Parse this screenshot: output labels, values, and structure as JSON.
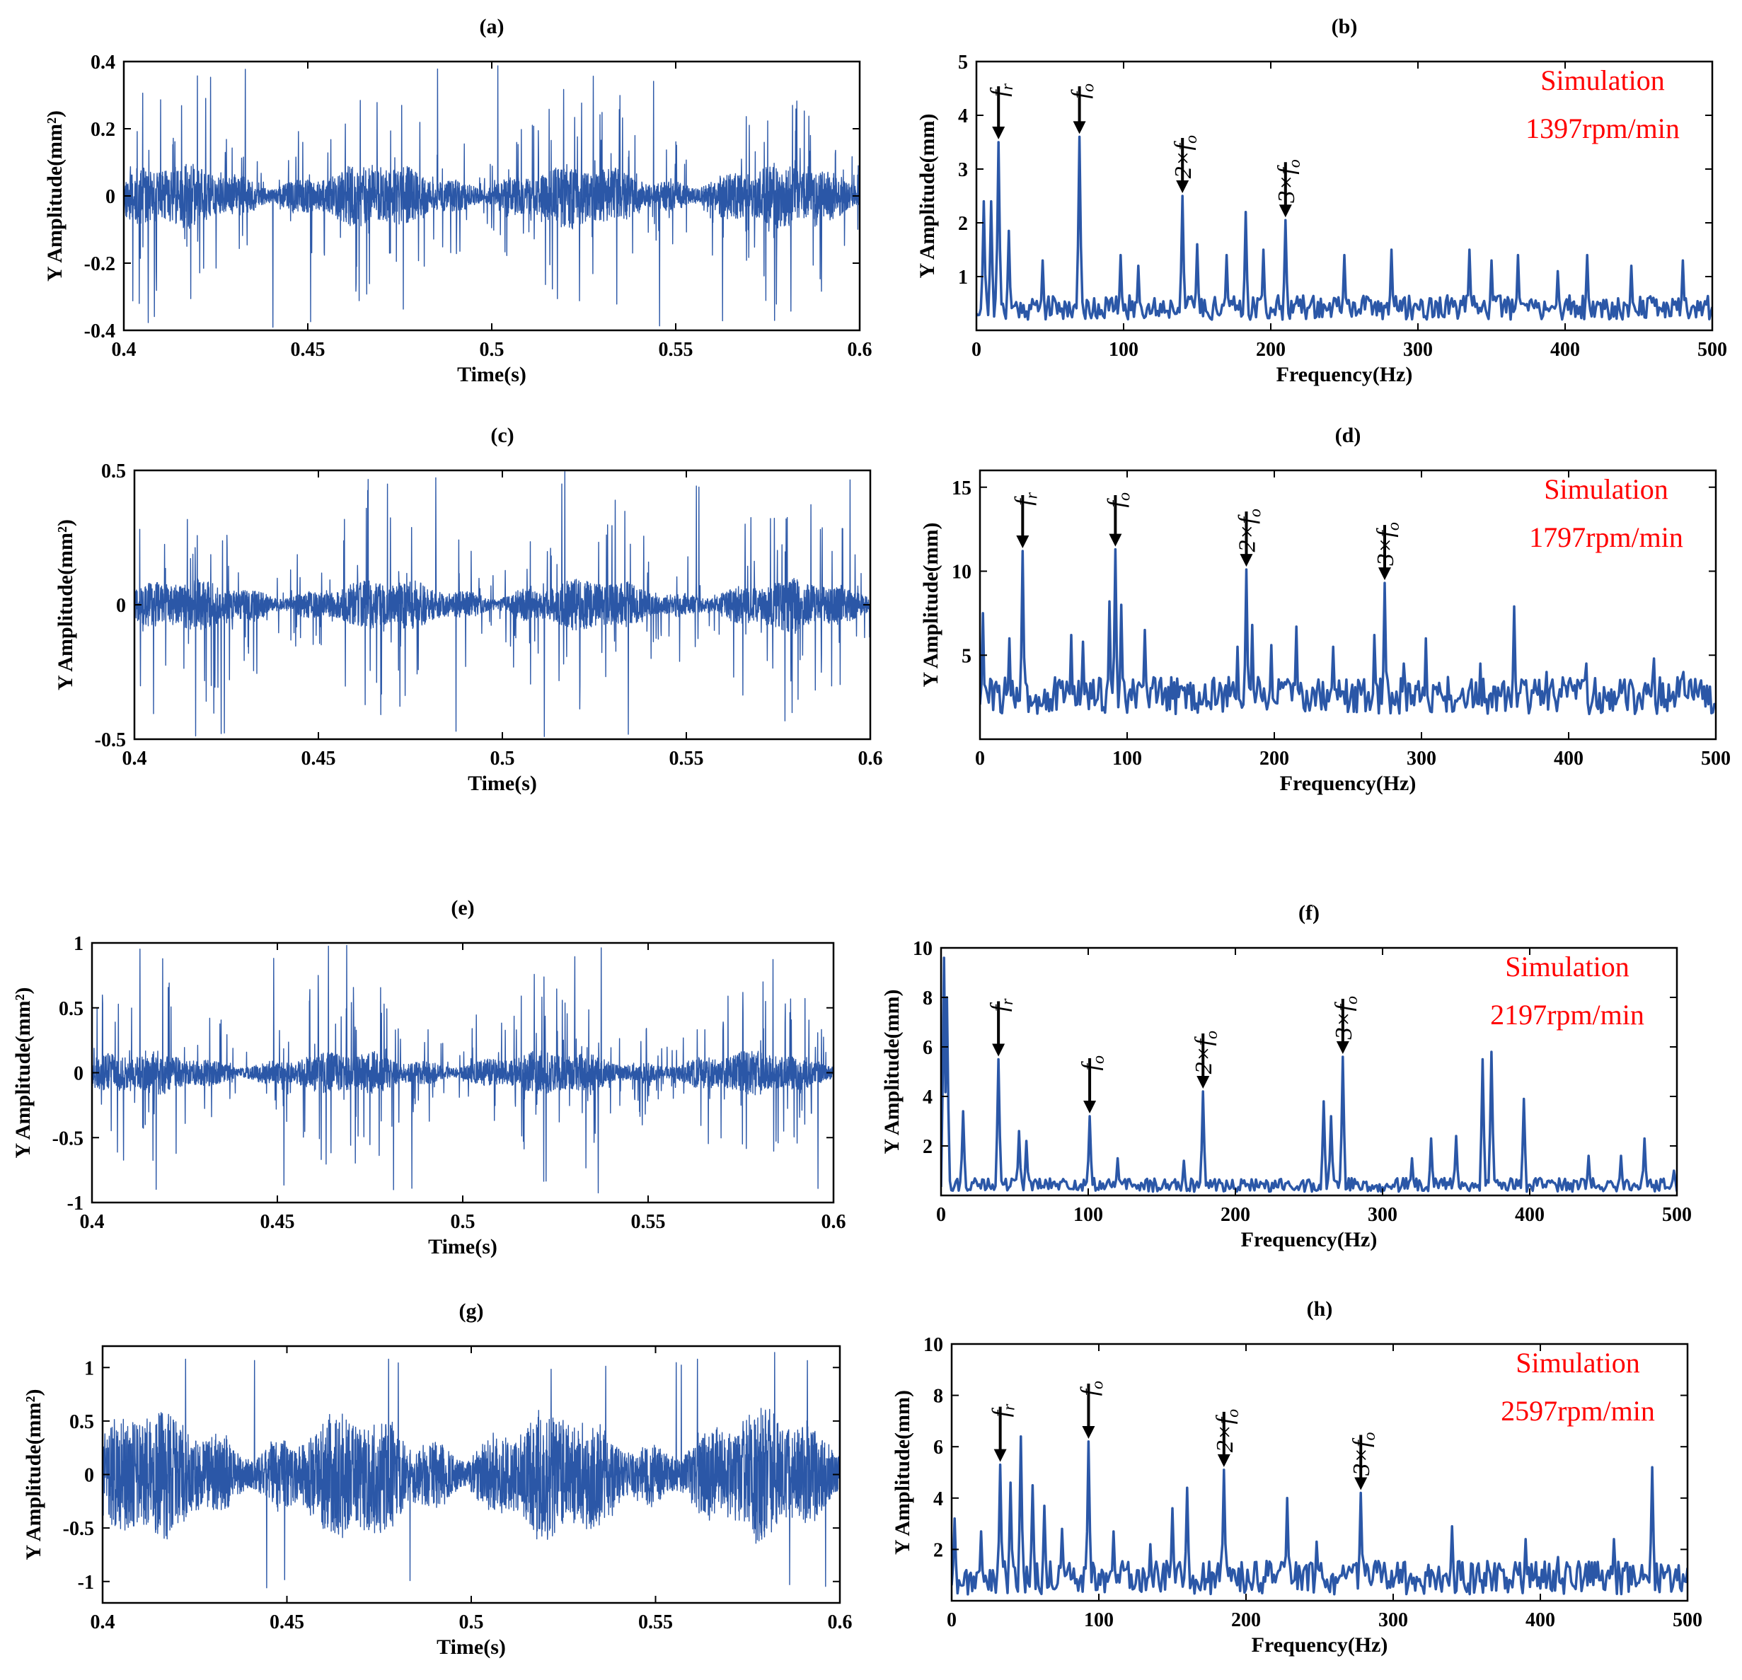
{
  "colors": {
    "trace": "#2b57a7",
    "annotation": "#ff0000",
    "axis": "#000000",
    "arrow": "#000000"
  },
  "chart_data": [
    {
      "id": "a",
      "type": "line",
      "kind": "time",
      "title": "(a)",
      "xlabel": "Time(s)",
      "ylabel": "Y Amplitude(mm²)",
      "xlim": [
        0.4,
        0.6
      ],
      "ylim": [
        -0.4,
        0.4
      ],
      "xticks": [
        "0.4",
        "0.45",
        "0.5",
        "0.55",
        "0.6"
      ],
      "xtick_values": [
        0.4,
        0.45,
        0.5,
        0.55,
        0.6
      ],
      "yticks": [
        "-0.4",
        "-0.2",
        "0",
        "0.2",
        "0.4"
      ],
      "ytick_values": [
        -0.4,
        -0.2,
        0,
        0.2,
        0.4
      ],
      "signal": {
        "base": 0.08,
        "spike": 0.32,
        "max_abs": 0.4,
        "seed": 11
      }
    },
    {
      "id": "b",
      "type": "line",
      "kind": "spectrum",
      "title": "(b)",
      "xlabel": "Frequency(Hz)",
      "ylabel": "Y Amplitude(mm)",
      "xlim": [
        0,
        500
      ],
      "ylim": [
        0,
        5
      ],
      "xticks": [
        "0",
        "100",
        "200",
        "300",
        "400",
        "500"
      ],
      "xtick_values": [
        0,
        100,
        200,
        300,
        400,
        500
      ],
      "yticks": [
        "1",
        "2",
        "3",
        "4",
        "5"
      ],
      "ytick_values": [
        1,
        2,
        3,
        4,
        5
      ],
      "annotation": [
        "Simulation",
        "1397rpm/min"
      ],
      "peaks": [
        {
          "label": "f_r",
          "x": 15,
          "y": 3.5
        },
        {
          "label": "f_o",
          "x": 70,
          "y": 3.6
        },
        {
          "label": "2×f_o",
          "x": 140,
          "y": 2.5
        },
        {
          "label": "3×f_o",
          "x": 210,
          "y": 2.05
        }
      ],
      "extra_peaks": [
        [
          5,
          2.4
        ],
        [
          10,
          2.4
        ],
        [
          22,
          1.85
        ],
        [
          45,
          1.3
        ],
        [
          98,
          1.4
        ],
        [
          110,
          1.2
        ],
        [
          150,
          1.6
        ],
        [
          170,
          1.4
        ],
        [
          183,
          2.2
        ],
        [
          195,
          1.5
        ],
        [
          250,
          1.4
        ],
        [
          282,
          1.5
        ],
        [
          335,
          1.5
        ],
        [
          350,
          1.3
        ],
        [
          368,
          1.4
        ],
        [
          395,
          1.1
        ],
        [
          415,
          1.4
        ],
        [
          445,
          1.2
        ],
        [
          480,
          1.3
        ]
      ],
      "noise": {
        "base": 0.2,
        "amp": 0.45,
        "seed": 21
      }
    },
    {
      "id": "c",
      "type": "line",
      "kind": "time",
      "title": "(c)",
      "xlabel": "Time(s)",
      "ylabel": "Y Amplitude(mm²)",
      "xlim": [
        0.4,
        0.6
      ],
      "ylim": [
        -0.5,
        0.5
      ],
      "xticks": [
        "0.4",
        "0.45",
        "0.5",
        "0.55",
        "0.6"
      ],
      "xtick_values": [
        0.4,
        0.45,
        0.5,
        0.55,
        0.6
      ],
      "yticks": [
        "-0.5",
        "0",
        "0.5"
      ],
      "ytick_values": [
        -0.5,
        0,
        0.5
      ],
      "signal": {
        "base": 0.08,
        "spike": 0.42,
        "max_abs": 0.5,
        "seed": 33
      }
    },
    {
      "id": "d",
      "type": "line",
      "kind": "spectrum",
      "title": "(d)",
      "xlabel": "Frequency(Hz)",
      "ylabel": "Y Amplitude(mm)",
      "xlim": [
        0,
        500
      ],
      "ylim": [
        0,
        16
      ],
      "xticks": [
        "0",
        "100",
        "200",
        "300",
        "400",
        "500"
      ],
      "xtick_values": [
        0,
        100,
        200,
        300,
        400,
        500
      ],
      "yticks": [
        "5",
        "10",
        "15"
      ],
      "ytick_values": [
        5,
        10,
        15
      ],
      "annotation": [
        "Simulation",
        "1797rpm/min"
      ],
      "peaks": [
        {
          "label": "f_r",
          "x": 29,
          "y": 11.2
        },
        {
          "label": "f_o",
          "x": 92,
          "y": 11.3
        },
        {
          "label": "2×f_o",
          "x": 181,
          "y": 10.1
        },
        {
          "label": "3×f_o",
          "x": 275,
          "y": 9.3
        }
      ],
      "extra_peaks": [
        [
          2,
          7.5
        ],
        [
          88,
          8.2
        ],
        [
          96,
          8.0
        ],
        [
          20,
          6.0
        ],
        [
          62,
          6.2
        ],
        [
          70,
          5.8
        ],
        [
          112,
          6.5
        ],
        [
          175,
          5.5
        ],
        [
          185,
          6.8
        ],
        [
          198,
          5.6
        ],
        [
          215,
          6.7
        ],
        [
          240,
          5.5
        ],
        [
          268,
          6.2
        ],
        [
          288,
          4.5
        ],
        [
          303,
          6.0
        ],
        [
          340,
          4.5
        ],
        [
          363,
          7.9
        ],
        [
          385,
          4.0
        ],
        [
          412,
          4.5
        ],
        [
          458,
          4.8
        ],
        [
          478,
          4.0
        ],
        [
          490,
          3.5
        ]
      ],
      "noise": {
        "base": 1.5,
        "amp": 2.2,
        "seed": 44
      }
    },
    {
      "id": "e",
      "type": "line",
      "kind": "time",
      "title": "(e)",
      "xlabel": "Time(s)",
      "ylabel": "Y Amplitude(mm²)",
      "xlim": [
        0.4,
        0.6
      ],
      "ylim": [
        -1,
        1
      ],
      "xticks": [
        "0.4",
        "0.45",
        "0.5",
        "0.55",
        "0.6"
      ],
      "xtick_values": [
        0.4,
        0.45,
        0.5,
        0.55,
        0.6
      ],
      "yticks": [
        "-1",
        "-0.5",
        "0",
        "0.5",
        "1"
      ],
      "ytick_values": [
        -1,
        -0.5,
        0,
        0.5,
        1
      ],
      "signal": {
        "base": 0.14,
        "spike": 0.72,
        "max_abs": 1.0,
        "seed": 55
      }
    },
    {
      "id": "f",
      "type": "line",
      "kind": "spectrum",
      "title": "(f)",
      "xlabel": "Frequency(Hz)",
      "ylabel": "Y Amplitude(mm)",
      "xlim": [
        0,
        500
      ],
      "ylim": [
        0,
        10
      ],
      "xticks": [
        "0",
        "100",
        "200",
        "300",
        "400",
        "500"
      ],
      "xtick_values": [
        0,
        100,
        200,
        300,
        400,
        500
      ],
      "yticks": [
        "2",
        "4",
        "6",
        "8",
        "10"
      ],
      "ytick_values": [
        2,
        4,
        6,
        8,
        10
      ],
      "annotation": [
        "Simulation",
        "2197rpm/min"
      ],
      "peaks": [
        {
          "label": "f_r",
          "x": 39,
          "y": 5.5
        },
        {
          "label": "f_o",
          "x": 101,
          "y": 3.2
        },
        {
          "label": "2×f_o",
          "x": 178,
          "y": 4.2
        },
        {
          "label": "3×f_o",
          "x": 273,
          "y": 5.6
        }
      ],
      "extra_peaks": [
        [
          2,
          9.6
        ],
        [
          4,
          8.0
        ],
        [
          15,
          3.4
        ],
        [
          53,
          2.6
        ],
        [
          58,
          2.2
        ],
        [
          120,
          1.5
        ],
        [
          165,
          1.4
        ],
        [
          260,
          3.8
        ],
        [
          265,
          3.2
        ],
        [
          320,
          1.5
        ],
        [
          333,
          2.3
        ],
        [
          350,
          2.4
        ],
        [
          368,
          5.5
        ],
        [
          374,
          5.8
        ],
        [
          396,
          3.9
        ],
        [
          440,
          1.6
        ],
        [
          462,
          1.6
        ],
        [
          478,
          2.3
        ],
        [
          498,
          1.0
        ]
      ],
      "noise": {
        "base": 0.15,
        "amp": 0.55,
        "seed": 66
      }
    },
    {
      "id": "g",
      "type": "line",
      "kind": "time",
      "title": "(g)",
      "xlabel": "Time(s)",
      "ylabel": "Y Amplitude(mm²)",
      "xlim": [
        0.4,
        0.6
      ],
      "ylim": [
        -1.2,
        1.2
      ],
      "xticks": [
        "0.4",
        "0.45",
        "0.5",
        "0.55",
        "0.6"
      ],
      "xtick_values": [
        0.4,
        0.45,
        0.5,
        0.55,
        0.6
      ],
      "yticks": [
        "-1",
        "-0.5",
        "0",
        "0.5",
        "1"
      ],
      "ytick_values": [
        -1,
        -0.5,
        0,
        0.5,
        1
      ],
      "signal": {
        "base": 0.5,
        "spike": 0.55,
        "max_abs": 1.15,
        "seed": 77
      }
    },
    {
      "id": "h",
      "type": "line",
      "kind": "spectrum",
      "title": "(h)",
      "xlabel": "Frequency(Hz)",
      "ylabel": "Y Amplitude(mm)",
      "xlim": [
        0,
        500
      ],
      "ylim": [
        0,
        10
      ],
      "xticks": [
        "0",
        "100",
        "200",
        "300",
        "400",
        "500"
      ],
      "xtick_values": [
        0,
        100,
        200,
        300,
        400,
        500
      ],
      "yticks": [
        "2",
        "4",
        "6",
        "8",
        "10"
      ],
      "ytick_values": [
        2,
        4,
        6,
        8,
        10
      ],
      "annotation": [
        "Simulation",
        "2597rpm/min"
      ],
      "peaks": [
        {
          "label": "f_r",
          "x": 33,
          "y": 5.3
        },
        {
          "label": "f_o",
          "x": 93,
          "y": 6.2
        },
        {
          "label": "2×f_o",
          "x": 185,
          "y": 5.1
        },
        {
          "label": "3×f_o",
          "x": 278,
          "y": 4.2
        }
      ],
      "extra_peaks": [
        [
          2,
          3.2
        ],
        [
          20,
          2.7
        ],
        [
          40,
          4.6
        ],
        [
          47,
          6.4
        ],
        [
          55,
          4.5
        ],
        [
          63,
          3.7
        ],
        [
          75,
          2.8
        ],
        [
          110,
          2.7
        ],
        [
          135,
          2.2
        ],
        [
          150,
          3.6
        ],
        [
          160,
          4.4
        ],
        [
          228,
          4.0
        ],
        [
          248,
          2.3
        ],
        [
          305,
          1.2
        ],
        [
          340,
          2.9
        ],
        [
          390,
          2.4
        ],
        [
          412,
          1.7
        ],
        [
          450,
          2.4
        ],
        [
          476,
          5.2
        ]
      ],
      "noise": {
        "base": 0.25,
        "amp": 1.3,
        "seed": 88
      }
    }
  ]
}
